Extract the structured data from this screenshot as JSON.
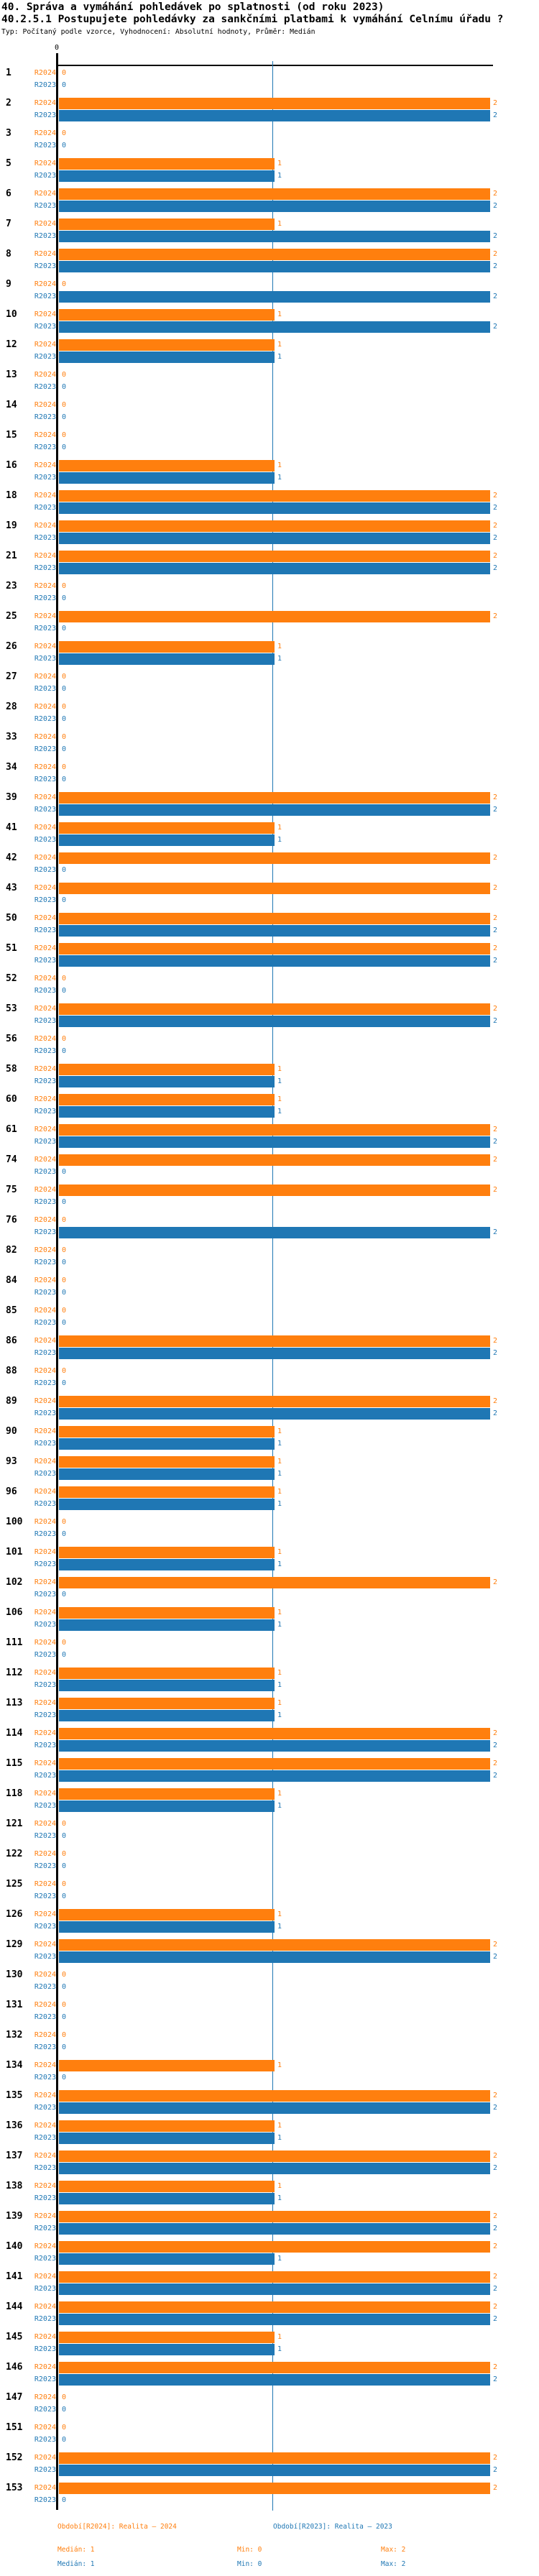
{
  "header": {
    "title": "40. Správa a vymáhání pohledávek po splatnosti (od roku 2023)",
    "subtitle": "40.2.5.1 Postupujete pohledávky za sankčními platbami k vymáhání Celnímu úřadu ?",
    "meta": "Typ: Počítaný podle vzorce, Vyhodnocení: Absolutní hodnoty, Průměr: Medián"
  },
  "axis": {
    "tick_label": "0",
    "min": 0,
    "max": 2,
    "gridline_value": 1
  },
  "colors": {
    "current": "#ff7f0e",
    "previous": "#1f77b4",
    "axis": "#000000",
    "background": "#ffffff"
  },
  "chart_data": {
    "type": "bar",
    "orientation": "horizontal",
    "title": "40. Správa a vymáhání pohledávek po splatnosti (od roku 2023)",
    "subtitle": "40.2.5.1 Postupujete pohledávky za sankčními platbami k vymáhání Celnímu úřadu ?",
    "meta": "Typ: Počítaný podle vzorce, Vyhodnocení: Absolutní hodnoty, Průměr: Medián",
    "xlim": [
      0,
      2
    ],
    "x_ticks_labeled": [
      "0"
    ],
    "gridline_x": 1,
    "grid": "single-vertical-line",
    "legend_position": "bottom",
    "categories": [
      "1",
      "2",
      "3",
      "5",
      "6",
      "7",
      "8",
      "9",
      "10",
      "12",
      "13",
      "14",
      "15",
      "16",
      "18",
      "19",
      "21",
      "23",
      "25",
      "26",
      "27",
      "28",
      "33",
      "34",
      "39",
      "41",
      "42",
      "43",
      "50",
      "51",
      "52",
      "53",
      "56",
      "58",
      "60",
      "61",
      "74",
      "75",
      "76",
      "82",
      "84",
      "85",
      "86",
      "88",
      "89",
      "90",
      "93",
      "96",
      "100",
      "101",
      "102",
      "106",
      "111",
      "112",
      "113",
      "114",
      "115",
      "118",
      "121",
      "122",
      "125",
      "126",
      "129",
      "130",
      "131",
      "132",
      "134",
      "135",
      "136",
      "137",
      "138",
      "139",
      "140",
      "141",
      "144",
      "145",
      "146",
      "147",
      "151",
      "152",
      "153"
    ],
    "series": [
      {
        "name": "R2024",
        "color": "#ff7f0e",
        "values": [
          0,
          2,
          0,
          1,
          2,
          1,
          2,
          0,
          1,
          1,
          0,
          0,
          0,
          1,
          2,
          2,
          2,
          0,
          2,
          1,
          0,
          0,
          0,
          0,
          2,
          1,
          2,
          2,
          2,
          2,
          0,
          2,
          0,
          1,
          1,
          2,
          2,
          2,
          0,
          0,
          0,
          0,
          2,
          0,
          2,
          1,
          1,
          1,
          0,
          1,
          2,
          1,
          0,
          1,
          1,
          2,
          2,
          1,
          0,
          0,
          0,
          1,
          2,
          0,
          0,
          0,
          1,
          2,
          1,
          2,
          1,
          2,
          2,
          2,
          2,
          1,
          2,
          0,
          0,
          2,
          2
        ]
      },
      {
        "name": "R2023",
        "color": "#1f77b4",
        "values": [
          0,
          2,
          0,
          1,
          2,
          2,
          2,
          2,
          2,
          1,
          0,
          0,
          0,
          1,
          2,
          2,
          2,
          0,
          0,
          1,
          0,
          0,
          0,
          0,
          2,
          1,
          0,
          0,
          2,
          2,
          0,
          2,
          0,
          1,
          1,
          2,
          0,
          0,
          2,
          0,
          0,
          0,
          2,
          0,
          2,
          1,
          1,
          1,
          0,
          1,
          0,
          1,
          0,
          1,
          1,
          2,
          2,
          1,
          0,
          0,
          0,
          1,
          2,
          0,
          0,
          0,
          0,
          2,
          1,
          2,
          1,
          2,
          1,
          2,
          2,
          1,
          2,
          0,
          0,
          2,
          0
        ]
      }
    ],
    "stats": {
      "R2024": {
        "median": 1,
        "min": 0,
        "max": 2
      },
      "R2023": {
        "median": 1,
        "min": 0,
        "max": 2
      }
    }
  },
  "legend": {
    "r2024": {
      "label": "Období[R2024]: Realita — 2024",
      "median": "Medián: 1",
      "min": "Min: 0",
      "max": "Max: 2"
    },
    "r2023": {
      "label": "Období[R2023]: Realita — 2023",
      "median": "Medián: 1",
      "min": "Min: 0",
      "max": "Max: 2"
    }
  }
}
